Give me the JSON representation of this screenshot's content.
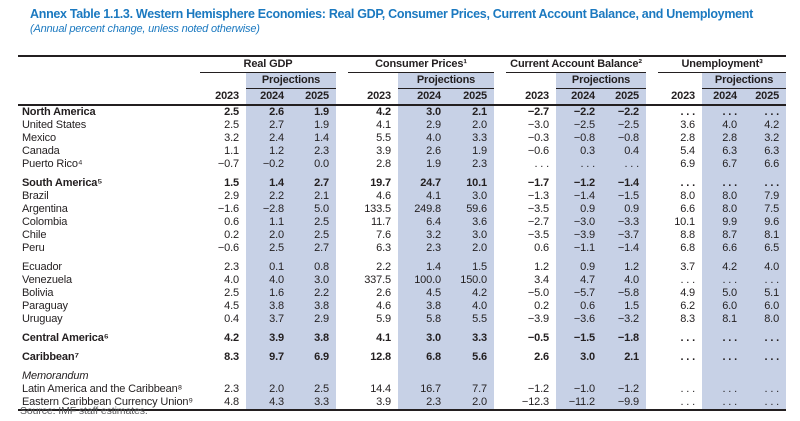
{
  "title": "Annex Table 1.1.3. Western Hemisphere Economies: Real GDP, Consumer Prices, Current Account Balance, and Unemployment",
  "subtitle": "(Annual percent change, unless noted otherwise)",
  "source_note": "Source: IMF staff estimates.",
  "colors": {
    "band_highlight": "#c7d1e6",
    "title_blue": "#1b79c0"
  },
  "table": {
    "projections_label": "Projections",
    "years": [
      "2023",
      "2024",
      "2025"
    ],
    "groups": [
      "Real GDP",
      "Consumer Prices¹",
      "Current Account Balance²",
      "Unemployment³"
    ],
    "rows": [
      {
        "label": "North America",
        "emphasis": "bold",
        "section_start": false,
        "values": [
          "2.5",
          "2.6",
          "1.9",
          "4.2",
          "3.0",
          "2.1",
          "−2.7",
          "−2.2",
          "−2.2",
          ". . .",
          ". . .",
          ". . ."
        ]
      },
      {
        "label": "United States",
        "emphasis": "none",
        "section_start": false,
        "values": [
          "2.5",
          "2.7",
          "1.9",
          "4.1",
          "2.9",
          "2.0",
          "−3.0",
          "−2.5",
          "−2.5",
          "3.6",
          "4.0",
          "4.2"
        ]
      },
      {
        "label": "Mexico",
        "emphasis": "none",
        "section_start": false,
        "values": [
          "3.2",
          "2.4",
          "1.4",
          "5.5",
          "4.0",
          "3.3",
          "−0.3",
          "−0.8",
          "−0.8",
          "2.8",
          "2.8",
          "3.2"
        ]
      },
      {
        "label": "Canada",
        "emphasis": "none",
        "section_start": false,
        "values": [
          "1.1",
          "1.2",
          "2.3",
          "3.9",
          "2.6",
          "1.9",
          "−0.6",
          "0.3",
          "0.4",
          "5.4",
          "6.3",
          "6.3"
        ]
      },
      {
        "label": "Puerto Rico⁴",
        "emphasis": "none",
        "section_start": false,
        "values": [
          "−0.7",
          "−0.2",
          "0.0",
          "2.8",
          "1.9",
          "2.3",
          ". . .",
          ". . .",
          ". . .",
          "6.9",
          "6.7",
          "6.6"
        ]
      },
      {
        "label": "South America⁵",
        "emphasis": "bold",
        "section_start": true,
        "values": [
          "1.5",
          "1.4",
          "2.7",
          "19.7",
          "24.7",
          "10.1",
          "−1.7",
          "−1.2",
          "−1.4",
          ". . .",
          ". . .",
          ". . ."
        ]
      },
      {
        "label": "Brazil",
        "emphasis": "none",
        "section_start": false,
        "values": [
          "2.9",
          "2.2",
          "2.1",
          "4.6",
          "4.1",
          "3.0",
          "−1.3",
          "−1.4",
          "−1.5",
          "8.0",
          "8.0",
          "7.9"
        ]
      },
      {
        "label": "Argentina",
        "emphasis": "none",
        "section_start": false,
        "values": [
          "−1.6",
          "−2.8",
          "5.0",
          "133.5",
          "249.8",
          "59.6",
          "−3.5",
          "0.9",
          "0.9",
          "6.6",
          "8.0",
          "7.5"
        ]
      },
      {
        "label": "Colombia",
        "emphasis": "none",
        "section_start": false,
        "values": [
          "0.6",
          "1.1",
          "2.5",
          "11.7",
          "6.4",
          "3.6",
          "−2.7",
          "−3.0",
          "−3.3",
          "10.1",
          "9.9",
          "9.6"
        ]
      },
      {
        "label": "Chile",
        "emphasis": "none",
        "section_start": false,
        "values": [
          "0.2",
          "2.0",
          "2.5",
          "7.6",
          "3.2",
          "3.0",
          "−3.5",
          "−3.9",
          "−3.7",
          "8.8",
          "8.7",
          "8.1"
        ]
      },
      {
        "label": "Peru",
        "emphasis": "none",
        "section_start": false,
        "values": [
          "−0.6",
          "2.5",
          "2.7",
          "6.3",
          "2.3",
          "2.0",
          "0.6",
          "−1.1",
          "−1.4",
          "6.8",
          "6.6",
          "6.5"
        ]
      },
      {
        "label": "Ecuador",
        "emphasis": "none",
        "section_start": true,
        "values": [
          "2.3",
          "0.1",
          "0.8",
          "2.2",
          "1.4",
          "1.5",
          "1.2",
          "0.9",
          "1.2",
          "3.7",
          "4.2",
          "4.0"
        ]
      },
      {
        "label": "Venezuela",
        "emphasis": "none",
        "section_start": false,
        "values": [
          "4.0",
          "4.0",
          "3.0",
          "337.5",
          "100.0",
          "150.0",
          "3.4",
          "4.7",
          "4.0",
          ". . .",
          ". . .",
          ". . ."
        ]
      },
      {
        "label": "Bolivia",
        "emphasis": "none",
        "section_start": false,
        "values": [
          "2.5",
          "1.6",
          "2.2",
          "2.6",
          "4.5",
          "4.2",
          "−5.0",
          "−5.7",
          "−5.8",
          "4.9",
          "5.0",
          "5.1"
        ]
      },
      {
        "label": "Paraguay",
        "emphasis": "none",
        "section_start": false,
        "values": [
          "4.5",
          "3.8",
          "3.8",
          "4.6",
          "3.8",
          "4.0",
          "0.2",
          "0.6",
          "1.5",
          "6.2",
          "6.0",
          "6.0"
        ]
      },
      {
        "label": "Uruguay",
        "emphasis": "none",
        "section_start": false,
        "values": [
          "0.4",
          "3.7",
          "2.9",
          "5.9",
          "5.8",
          "5.5",
          "−3.9",
          "−3.6",
          "−3.2",
          "8.3",
          "8.1",
          "8.0"
        ]
      },
      {
        "label": "Central America⁶",
        "emphasis": "bold",
        "section_start": true,
        "values": [
          "4.2",
          "3.9",
          "3.8",
          "4.1",
          "3.0",
          "3.3",
          "−0.5",
          "−1.5",
          "−1.8",
          ". . .",
          ". . .",
          ". . ."
        ]
      },
      {
        "label": "Caribbean⁷",
        "emphasis": "bold",
        "section_start": true,
        "values": [
          "8.3",
          "9.7",
          "6.9",
          "12.8",
          "6.8",
          "5.6",
          "2.6",
          "3.0",
          "2.1",
          ". . .",
          ". . .",
          ". . ."
        ]
      },
      {
        "label": "Memorandum",
        "emphasis": "italic",
        "section_start": true,
        "values": [
          "",
          "",
          "",
          "",
          "",
          "",
          "",
          "",
          "",
          "",
          "",
          ""
        ]
      },
      {
        "label": "Latin America and the Caribbean⁸",
        "emphasis": "none",
        "section_start": false,
        "values": [
          "2.3",
          "2.0",
          "2.5",
          "14.4",
          "16.7",
          "7.7",
          "−1.2",
          "−1.0",
          "−1.2",
          ". . .",
          ". . .",
          ". . ."
        ]
      },
      {
        "label": "Eastern Caribbean Currency Union⁹",
        "emphasis": "none",
        "section_start": false,
        "values": [
          "4.8",
          "4.3",
          "3.3",
          "3.9",
          "2.3",
          "2.0",
          "−12.3",
          "−11.2",
          "−9.9",
          ". . .",
          ". . .",
          ". . ."
        ]
      }
    ]
  }
}
